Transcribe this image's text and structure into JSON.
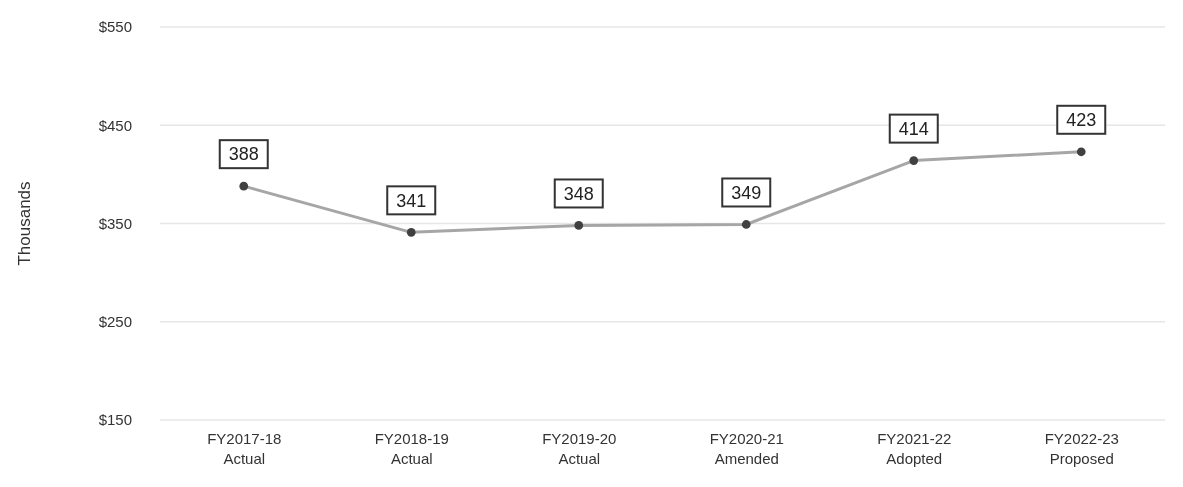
{
  "chart_data": {
    "type": "line",
    "ylabel": "Thousands",
    "categories": [
      "FY2017-18\nActual",
      "FY2018-19\nActual",
      "FY2019-20\nActual",
      "FY2020-21\nAmended",
      "FY2021-22\nAdopted",
      "FY2022-23\nProposed"
    ],
    "series": [
      {
        "color": "#a6a6a6",
        "values": [
          388,
          341,
          348,
          349,
          414,
          423
        ]
      }
    ],
    "ylim": [
      150,
      550
    ],
    "yticks": [
      {
        "value": 150,
        "label": "$150"
      },
      {
        "value": 250,
        "label": "$250"
      },
      {
        "value": 350,
        "label": "$350"
      },
      {
        "value": 450,
        "label": "$450"
      },
      {
        "value": 550,
        "label": "$550"
      }
    ],
    "grid": "y",
    "marker": "circle",
    "data_labels": true
  }
}
